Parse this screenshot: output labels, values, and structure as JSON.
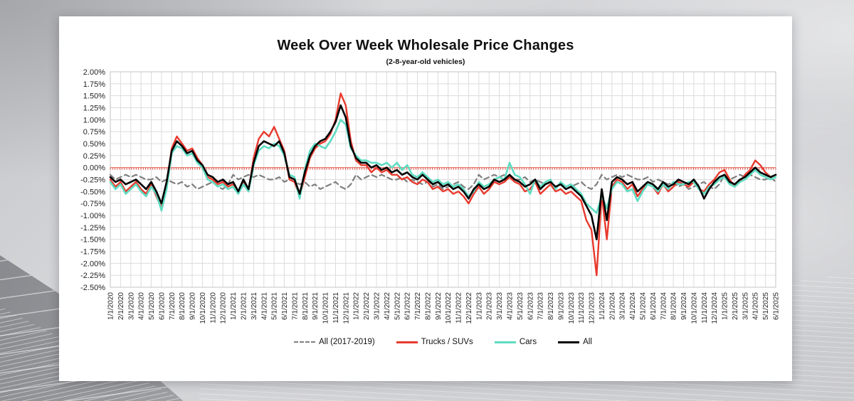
{
  "chart_data": {
    "type": "line",
    "title": "Week Over Week Wholesale Price Changes",
    "subtitle": "(2-8-year-old vehicles)",
    "grid": true,
    "legend_position": "bottom",
    "y_axis": {
      "min": -2.5,
      "max": 2.0,
      "step": 0.25,
      "ticks": [
        "2.00%",
        "1.75%",
        "1.50%",
        "1.25%",
        "1.00%",
        "0.75%",
        "0.50%",
        "0.25%",
        "0.00%",
        "-0.25%",
        "-0.50%",
        "-0.75%",
        "-1.00%",
        "-1.25%",
        "-1.50%",
        "-1.75%",
        "-2.00%",
        "-2.25%",
        "-2.50%"
      ]
    },
    "zero_line": {
      "color": "#E8837A",
      "tick_color": "#D93A2B",
      "weekly_ticks": 283
    },
    "x_axis": {
      "points_per_month": 2,
      "labels": [
        "1/1/2020",
        "2/1/2020",
        "3/1/2020",
        "4/1/2020",
        "5/1/2020",
        "6/1/2020",
        "7/1/2020",
        "8/1/2020",
        "9/1/2020",
        "10/1/2020",
        "11/1/2020",
        "12/1/2020",
        "1/1/2021",
        "2/1/2021",
        "3/1/2021",
        "4/1/2021",
        "5/1/2021",
        "6/1/2021",
        "7/1/2021",
        "8/1/2021",
        "9/1/2021",
        "10/1/2021",
        "11/1/2021",
        "12/1/2021",
        "1/1/2022",
        "2/1/2022",
        "3/1/2022",
        "4/1/2022",
        "5/1/2022",
        "6/1/2022",
        "7/1/2022",
        "8/1/2022",
        "9/1/2022",
        "10/1/2022",
        "11/1/2022",
        "12/1/2022",
        "1/1/2023",
        "2/1/2023",
        "3/1/2023",
        "4/1/2023",
        "5/1/2023",
        "6/1/2023",
        "7/1/2023",
        "8/1/2023",
        "9/1/2023",
        "10/1/2023",
        "11/1/2023",
        "12/1/2023",
        "1/1/2024",
        "2/1/2024",
        "3/1/2024",
        "4/1/2024",
        "5/1/2024",
        "6/1/2024",
        "7/1/2024",
        "8/1/2024",
        "9/1/2024",
        "10/1/2024",
        "11/1/2024",
        "12/1/2024",
        "1/1/2025",
        "2/1/2025",
        "3/1/2025",
        "4/1/2025",
        "5/1/2025",
        "6/1/2025"
      ]
    },
    "series": [
      {
        "name": "All (2017-2019)",
        "color": "#7F7F7F",
        "style": "dashed",
        "width": 2.2,
        "values": [
          -0.15,
          -0.25,
          -0.2,
          -0.15,
          -0.2,
          -0.15,
          -0.2,
          -0.25,
          -0.25,
          -0.2,
          -0.3,
          -0.25,
          -0.3,
          -0.35,
          -0.3,
          -0.4,
          -0.35,
          -0.45,
          -0.4,
          -0.35,
          -0.3,
          -0.4,
          -0.45,
          -0.35,
          -0.15,
          -0.25,
          -0.2,
          -0.15,
          -0.2,
          -0.15,
          -0.2,
          -0.25,
          -0.25,
          -0.2,
          -0.3,
          -0.25,
          -0.3,
          -0.35,
          -0.3,
          -0.4,
          -0.35,
          -0.45,
          -0.4,
          -0.35,
          -0.3,
          -0.4,
          -0.45,
          -0.35,
          -0.15,
          -0.25,
          -0.2,
          -0.15,
          -0.2,
          -0.15,
          -0.2,
          -0.25,
          -0.25,
          -0.2,
          -0.3,
          -0.25,
          -0.3,
          -0.35,
          -0.3,
          -0.4,
          -0.35,
          -0.45,
          -0.4,
          -0.35,
          -0.3,
          -0.4,
          -0.45,
          -0.35,
          -0.15,
          -0.25,
          -0.2,
          -0.15,
          -0.2,
          -0.15,
          -0.2,
          -0.25,
          -0.25,
          -0.2,
          -0.3,
          -0.25,
          -0.3,
          -0.35,
          -0.3,
          -0.4,
          -0.35,
          -0.45,
          -0.4,
          -0.35,
          -0.3,
          -0.4,
          -0.45,
          -0.35,
          -0.15,
          -0.25,
          -0.2,
          -0.15,
          -0.2,
          -0.15,
          -0.2,
          -0.25,
          -0.25,
          -0.2,
          -0.3,
          -0.25,
          -0.3,
          -0.35,
          -0.3,
          -0.4,
          -0.35,
          -0.45,
          -0.4,
          -0.35,
          -0.3,
          -0.4,
          -0.45,
          -0.35,
          -0.15,
          -0.25,
          -0.2,
          -0.15,
          -0.2,
          -0.15,
          -0.2,
          -0.25,
          -0.25,
          -0.2,
          -0.3
        ]
      },
      {
        "name": "Trucks / SUVs",
        "color": "#E8392D",
        "style": "solid",
        "width": 2.4,
        "values": [
          -0.25,
          -0.4,
          -0.3,
          -0.5,
          -0.4,
          -0.3,
          -0.45,
          -0.55,
          -0.35,
          -0.6,
          -0.85,
          -0.4,
          0.4,
          0.65,
          0.5,
          0.35,
          0.4,
          0.2,
          0.05,
          -0.2,
          -0.25,
          -0.35,
          -0.3,
          -0.4,
          -0.35,
          -0.55,
          -0.3,
          -0.5,
          0.2,
          0.6,
          0.75,
          0.65,
          0.85,
          0.6,
          0.35,
          -0.25,
          -0.3,
          -0.6,
          -0.2,
          0.2,
          0.4,
          0.5,
          0.55,
          0.7,
          1.0,
          1.55,
          1.3,
          0.55,
          0.15,
          0.05,
          0.05,
          -0.1,
          0.0,
          -0.1,
          -0.05,
          -0.15,
          -0.15,
          -0.25,
          -0.2,
          -0.3,
          -0.35,
          -0.25,
          -0.3,
          -0.45,
          -0.4,
          -0.5,
          -0.45,
          -0.55,
          -0.5,
          -0.6,
          -0.75,
          -0.55,
          -0.4,
          -0.55,
          -0.45,
          -0.3,
          -0.35,
          -0.3,
          -0.2,
          -0.3,
          -0.35,
          -0.5,
          -0.45,
          -0.3,
          -0.55,
          -0.45,
          -0.35,
          -0.5,
          -0.45,
          -0.55,
          -0.5,
          -0.6,
          -0.7,
          -1.1,
          -1.3,
          -2.25,
          -0.55,
          -1.5,
          -0.4,
          -0.25,
          -0.3,
          -0.45,
          -0.35,
          -0.6,
          -0.45,
          -0.35,
          -0.4,
          -0.55,
          -0.35,
          -0.5,
          -0.4,
          -0.3,
          -0.35,
          -0.4,
          -0.3,
          -0.45,
          -0.5,
          -0.35,
          -0.25,
          -0.1,
          -0.05,
          -0.25,
          -0.4,
          -0.3,
          -0.15,
          -0.05,
          0.15,
          0.05,
          -0.1,
          -0.2,
          -0.15
        ]
      },
      {
        "name": "Cars",
        "color": "#5FDCC2",
        "style": "solid",
        "width": 2.6,
        "values": [
          -0.3,
          -0.45,
          -0.35,
          -0.55,
          -0.45,
          -0.35,
          -0.5,
          -0.6,
          -0.4,
          -0.55,
          -0.9,
          -0.45,
          0.3,
          0.45,
          0.4,
          0.25,
          0.3,
          0.1,
          0.0,
          -0.25,
          -0.3,
          -0.4,
          -0.35,
          -0.45,
          -0.4,
          -0.55,
          -0.35,
          -0.5,
          0.05,
          0.35,
          0.45,
          0.4,
          0.5,
          0.45,
          0.25,
          -0.15,
          -0.2,
          -0.65,
          -0.05,
          0.35,
          0.5,
          0.45,
          0.4,
          0.55,
          0.75,
          1.0,
          0.9,
          0.4,
          0.25,
          0.15,
          0.15,
          0.1,
          0.1,
          0.05,
          0.1,
          0.0,
          0.1,
          -0.05,
          0.05,
          -0.15,
          -0.2,
          -0.1,
          -0.2,
          -0.3,
          -0.25,
          -0.35,
          -0.3,
          -0.4,
          -0.35,
          -0.45,
          -0.6,
          -0.5,
          -0.3,
          -0.4,
          -0.35,
          -0.25,
          -0.2,
          -0.25,
          0.1,
          -0.15,
          -0.2,
          -0.35,
          -0.55,
          -0.25,
          -0.4,
          -0.3,
          -0.25,
          -0.45,
          -0.3,
          -0.4,
          -0.35,
          -0.45,
          -0.55,
          -0.75,
          -0.85,
          -0.95,
          -0.6,
          -0.85,
          -0.45,
          -0.3,
          -0.35,
          -0.5,
          -0.45,
          -0.7,
          -0.5,
          -0.35,
          -0.4,
          -0.5,
          -0.35,
          -0.45,
          -0.3,
          -0.35,
          -0.35,
          -0.3,
          -0.3,
          -0.45,
          -0.55,
          -0.4,
          -0.35,
          -0.25,
          -0.2,
          -0.35,
          -0.4,
          -0.3,
          -0.25,
          -0.15,
          -0.05,
          -0.15,
          -0.2,
          -0.25,
          -0.2
        ]
      },
      {
        "name": "All",
        "color": "#000000",
        "style": "solid",
        "width": 2.6,
        "values": [
          -0.2,
          -0.3,
          -0.25,
          -0.35,
          -0.3,
          -0.25,
          -0.35,
          -0.45,
          -0.3,
          -0.5,
          -0.75,
          -0.3,
          0.35,
          0.55,
          0.45,
          0.3,
          0.35,
          0.15,
          0.05,
          -0.15,
          -0.2,
          -0.3,
          -0.25,
          -0.35,
          -0.3,
          -0.5,
          -0.25,
          -0.45,
          0.1,
          0.45,
          0.55,
          0.5,
          0.45,
          0.55,
          0.3,
          -0.2,
          -0.25,
          -0.55,
          -0.1,
          0.25,
          0.45,
          0.55,
          0.6,
          0.75,
          0.95,
          1.3,
          1.05,
          0.45,
          0.2,
          0.1,
          0.1,
          0.0,
          0.05,
          -0.05,
          0.0,
          -0.1,
          -0.05,
          -0.15,
          -0.1,
          -0.2,
          -0.25,
          -0.15,
          -0.25,
          -0.35,
          -0.3,
          -0.4,
          -0.35,
          -0.45,
          -0.4,
          -0.5,
          -0.65,
          -0.45,
          -0.35,
          -0.45,
          -0.4,
          -0.25,
          -0.3,
          -0.25,
          -0.15,
          -0.25,
          -0.3,
          -0.4,
          -0.35,
          -0.25,
          -0.45,
          -0.35,
          -0.3,
          -0.4,
          -0.35,
          -0.45,
          -0.4,
          -0.5,
          -0.6,
          -0.8,
          -1.0,
          -1.5,
          -0.45,
          -1.1,
          -0.3,
          -0.2,
          -0.25,
          -0.35,
          -0.3,
          -0.5,
          -0.4,
          -0.3,
          -0.35,
          -0.45,
          -0.3,
          -0.4,
          -0.35,
          -0.25,
          -0.3,
          -0.35,
          -0.25,
          -0.4,
          -0.65,
          -0.45,
          -0.3,
          -0.2,
          -0.15,
          -0.3,
          -0.35,
          -0.25,
          -0.2,
          -0.1,
          0.0,
          -0.1,
          -0.15,
          -0.2,
          -0.15
        ]
      }
    ]
  }
}
